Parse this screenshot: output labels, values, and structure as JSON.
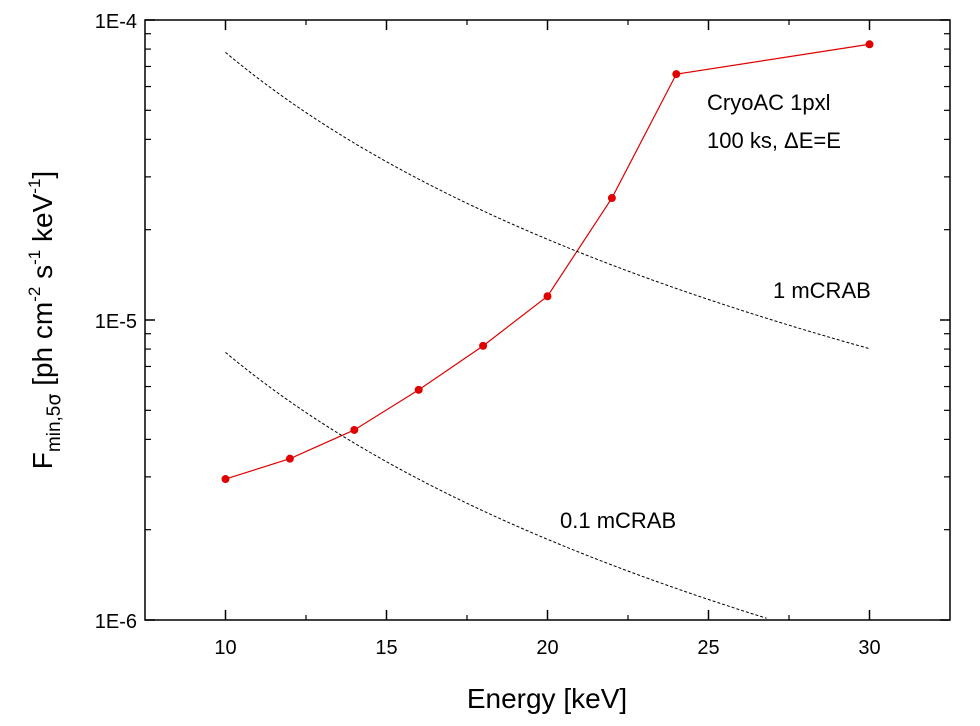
{
  "chart_data": {
    "type": "line",
    "title": "",
    "xlabel": "Energy [keV]",
    "ylabel": {
      "symbol": "F",
      "subscript": "min,5",
      "sigma": "σ",
      "units_open": " [ph cm",
      "exp1": "-2",
      "s": " s",
      "exp2": "-1",
      "kev": " keV",
      "exp3": "-1",
      "close": "]"
    },
    "xlim": [
      7.5,
      32.5
    ],
    "ylim": [
      1e-06,
      0.0001
    ],
    "yscale": "log",
    "x_ticks": [
      10,
      15,
      20,
      25,
      30
    ],
    "x_tick_labels": [
      "10",
      "15",
      "20",
      "25",
      "30"
    ],
    "y_ticks": [
      1e-06,
      1e-05,
      0.0001
    ],
    "y_tick_labels": [
      "1E-6",
      "1E-5",
      "1E-4"
    ],
    "series": [
      {
        "name": "CryoAC 1pxl",
        "color": "#e00000",
        "style": "solid-markers",
        "x": [
          10,
          12,
          14,
          16,
          18,
          20,
          22,
          24,
          30
        ],
        "y": [
          2.95e-06,
          3.45e-06,
          4.3e-06,
          5.85e-06,
          8.2e-06,
          1.2e-05,
          2.55e-05,
          6.6e-05,
          8.3e-05
        ]
      },
      {
        "name": "1 mCRAB",
        "color": "#000000",
        "style": "dotted",
        "x": [
          10,
          30
        ],
        "y": [
          7.8e-05,
          8e-06
        ],
        "power_law_index": 2.07
      },
      {
        "name": "0.1 mCRAB",
        "color": "#000000",
        "style": "dotted",
        "x": [
          10,
          26.8
        ],
        "y": [
          7.8e-06,
          1e-06
        ],
        "power_law_index": 2.07
      }
    ],
    "annotations": [
      {
        "text": "CryoAC 1pxl",
        "color": "#e00000"
      },
      {
        "text": "100 ks, ΔE=E",
        "color": "#e00000"
      },
      {
        "text": "1 mCRAB",
        "color": "#000000"
      },
      {
        "text": "0.1 mCRAB",
        "color": "#000000"
      }
    ]
  }
}
